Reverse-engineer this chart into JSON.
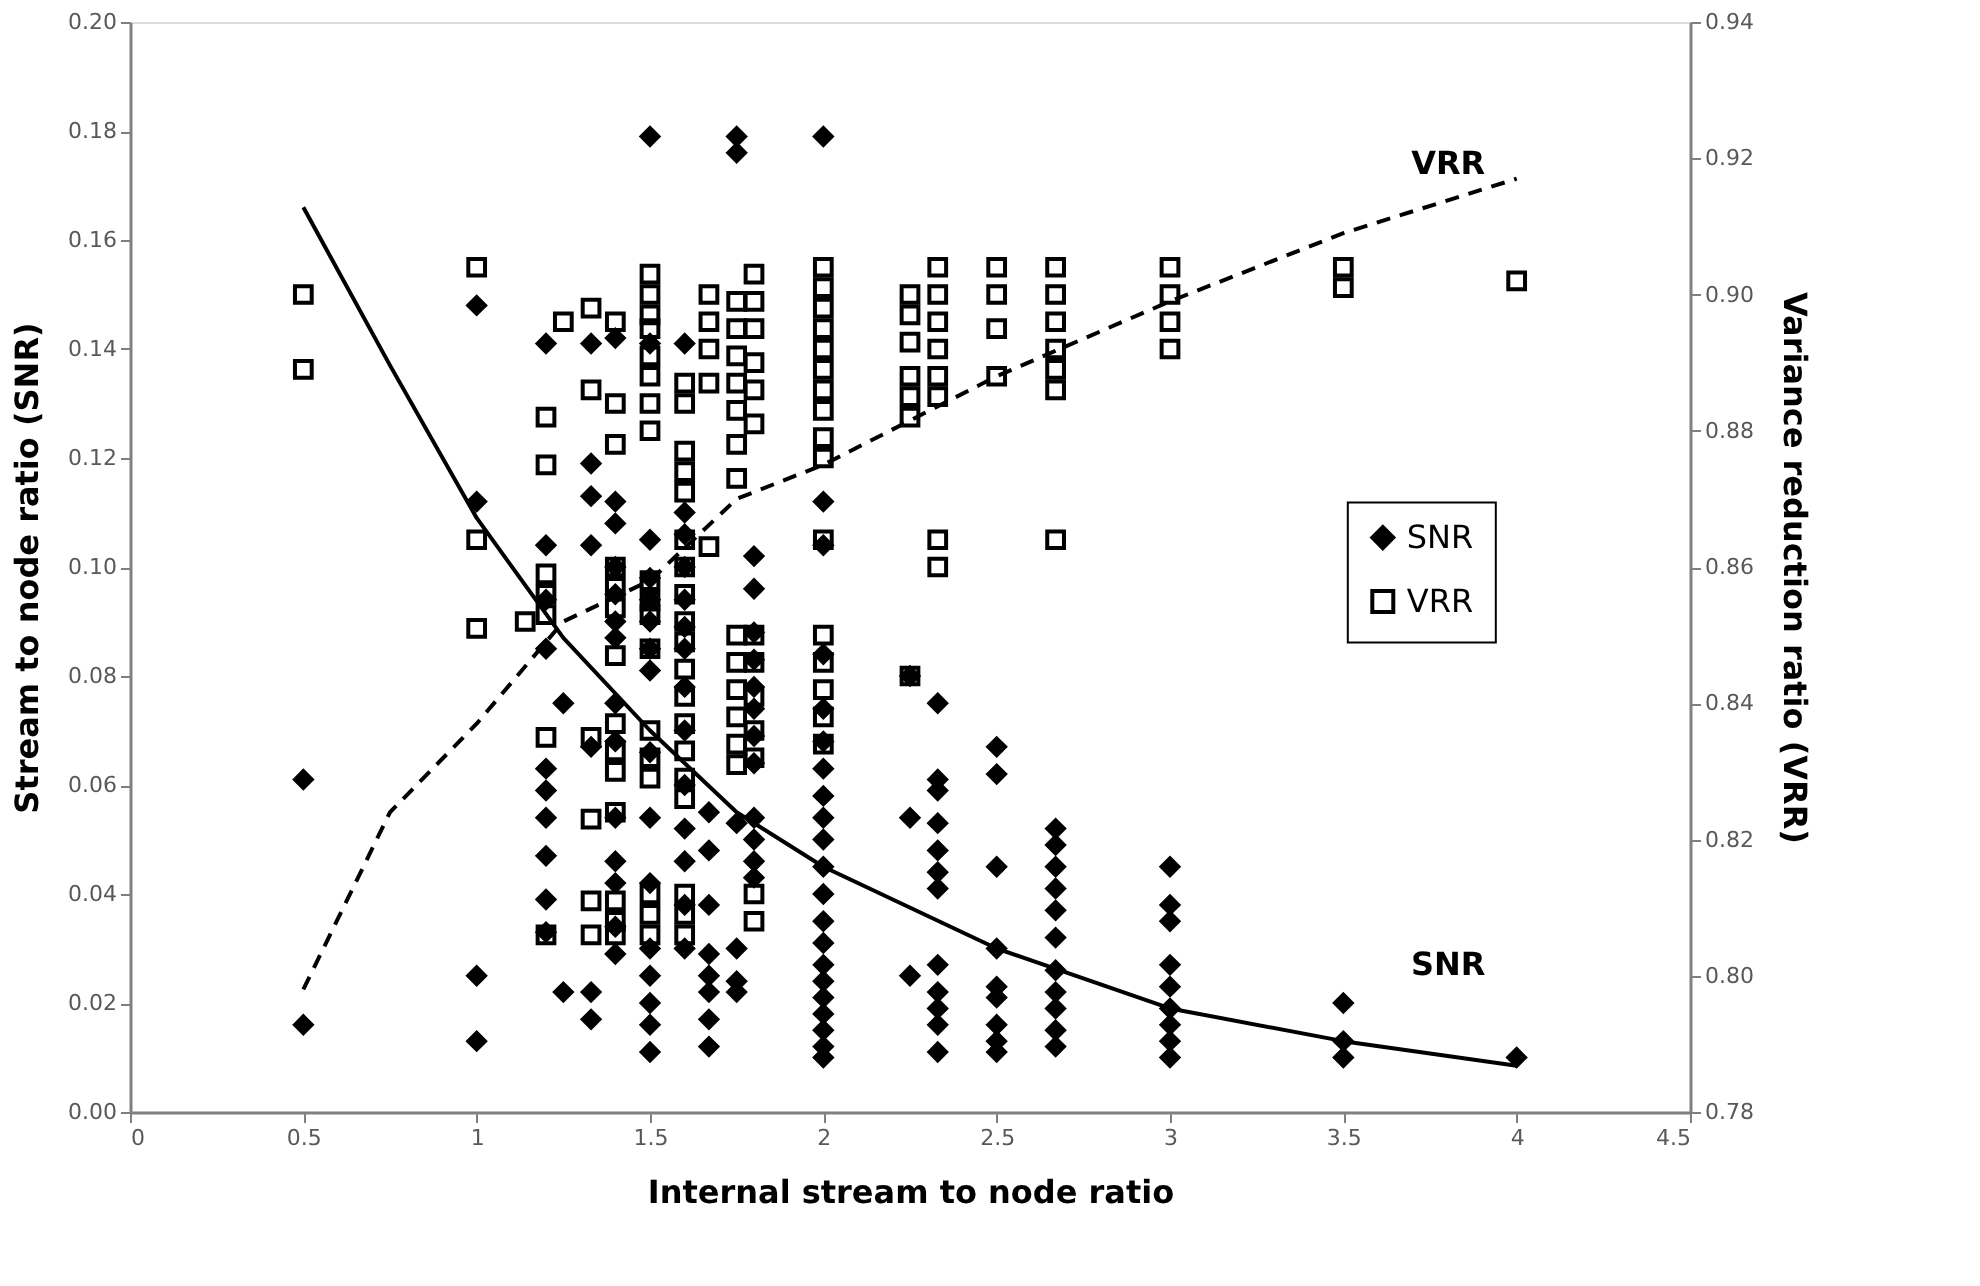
{
  "chart_data": {
    "type": "scatter",
    "xlabel": "Internal stream to node ratio",
    "ylabel": "Stream to node ratio (SNR)",
    "y2label": "Variance reduction ratio (VRR)",
    "xlim": [
      0,
      4.5
    ],
    "xticks": [
      0,
      0.5,
      1,
      1.5,
      2,
      2.5,
      3,
      3.5,
      4,
      4.5
    ],
    "ylim": [
      0,
      0.2
    ],
    "yticks": [
      {
        "value": 0,
        "label": "0.00"
      },
      {
        "value": 0.02,
        "label": "0.02"
      },
      {
        "value": 0.04,
        "label": "0.04"
      },
      {
        "value": 0.06,
        "label": "0.06"
      },
      {
        "value": 0.08,
        "label": "0.08"
      },
      {
        "value": 0.1,
        "label": "0.10"
      },
      {
        "value": 0.12,
        "label": "0.12"
      },
      {
        "value": 0.14,
        "label": "0.14"
      },
      {
        "value": 0.16,
        "label": "0.16"
      },
      {
        "value": 0.18,
        "label": "0.18"
      },
      {
        "value": 0.2,
        "label": "0.20"
      }
    ],
    "y2lim": [
      0.78,
      0.94
    ],
    "y2ticks": [
      0.78,
      {
        "value": 0.8,
        "label": "0.80"
      },
      0.82,
      0.84,
      0.86,
      0.88,
      {
        "value": 0.9,
        "label": "0.90"
      },
      0.92,
      0.94
    ],
    "grid": false,
    "legend": "right",
    "annotations": [
      "VRR",
      "SNR"
    ],
    "series": [
      {
        "name": "SNR",
        "marker": "diamond",
        "color": "#000000",
        "x": [
          0.5,
          0.5,
          1,
          1,
          1,
          1,
          1.2,
          1.2,
          1.2,
          1.2,
          1.2,
          1.2,
          1.2,
          1.2,
          1.2,
          1.2,
          1.25,
          1.25,
          1.33,
          1.33,
          1.33,
          1.33,
          1.33,
          1.33,
          1.33,
          1.4,
          1.4,
          1.4,
          1.4,
          1.4,
          1.4,
          1.4,
          1.4,
          1.4,
          1.4,
          1.4,
          1.4,
          1.4,
          1.4,
          1.5,
          1.5,
          1.5,
          1.5,
          1.5,
          1.5,
          1.5,
          1.5,
          1.5,
          1.5,
          1.5,
          1.5,
          1.5,
          1.5,
          1.5,
          1.5,
          1.6,
          1.6,
          1.6,
          1.6,
          1.6,
          1.6,
          1.6,
          1.6,
          1.6,
          1.6,
          1.6,
          1.6,
          1.6,
          1.6,
          1.67,
          1.67,
          1.67,
          1.67,
          1.67,
          1.67,
          1.67,
          1.67,
          1.75,
          1.75,
          1.75,
          1.75,
          1.75,
          1.75,
          1.8,
          1.8,
          1.8,
          1.8,
          1.8,
          1.8,
          1.8,
          1.8,
          1.8,
          1.8,
          1.8,
          1.8,
          2,
          2,
          2,
          2,
          2,
          2,
          2,
          2,
          2,
          2,
          2,
          2,
          2,
          2,
          2,
          2,
          2,
          2,
          2,
          2,
          2,
          2.25,
          2.25,
          2.25,
          2.33,
          2.33,
          2.33,
          2.33,
          2.33,
          2.33,
          2.33,
          2.33,
          2.33,
          2.33,
          2.33,
          2.33,
          2.5,
          2.5,
          2.5,
          2.5,
          2.5,
          2.5,
          2.5,
          2.5,
          2.5,
          2.67,
          2.67,
          2.67,
          2.67,
          2.67,
          2.67,
          2.67,
          2.67,
          2.67,
          2.67,
          2.67,
          3,
          3,
          3,
          3,
          3,
          3,
          3,
          3,
          3,
          3.5,
          3.5,
          3.5,
          4
        ],
        "values": [
          0.061,
          0.016,
          0.148,
          0.112,
          0.025,
          0.013,
          0.141,
          0.104,
          0.094,
          0.085,
          0.063,
          0.059,
          0.054,
          0.047,
          0.039,
          0.033,
          0.075,
          0.022,
          0.141,
          0.119,
          0.113,
          0.104,
          0.067,
          0.022,
          0.017,
          0.142,
          0.112,
          0.108,
          0.1,
          0.095,
          0.09,
          0.087,
          0.075,
          0.068,
          0.054,
          0.046,
          0.042,
          0.034,
          0.029,
          0.179,
          0.141,
          0.105,
          0.098,
          0.094,
          0.09,
          0.085,
          0.081,
          0.066,
          0.054,
          0.042,
          0.03,
          0.025,
          0.02,
          0.016,
          0.011,
          0.141,
          0.11,
          0.106,
          0.1,
          0.094,
          0.089,
          0.085,
          0.078,
          0.07,
          0.06,
          0.052,
          0.046,
          0.038,
          0.03,
          0.055,
          0.048,
          0.038,
          0.029,
          0.025,
          0.022,
          0.017,
          0.012,
          0.179,
          0.176,
          0.053,
          0.03,
          0.024,
          0.022,
          0.102,
          0.096,
          0.088,
          0.083,
          0.078,
          0.074,
          0.069,
          0.064,
          0.054,
          0.05,
          0.046,
          0.043,
          0.179,
          0.112,
          0.104,
          0.084,
          0.074,
          0.068,
          0.063,
          0.058,
          0.054,
          0.05,
          0.045,
          0.04,
          0.035,
          0.031,
          0.027,
          0.024,
          0.021,
          0.018,
          0.015,
          0.012,
          0.01,
          0.08,
          0.054,
          0.025,
          0.075,
          0.061,
          0.059,
          0.053,
          0.048,
          0.044,
          0.041,
          0.027,
          0.022,
          0.019,
          0.016,
          0.011,
          0.067,
          0.062,
          0.045,
          0.03,
          0.023,
          0.021,
          0.016,
          0.013,
          0.011,
          0.052,
          0.049,
          0.045,
          0.041,
          0.037,
          0.032,
          0.026,
          0.022,
          0.019,
          0.015,
          0.012,
          0.045,
          0.038,
          0.035,
          0.027,
          0.023,
          0.019,
          0.016,
          0.013,
          0.01,
          0.02,
          0.013,
          0.01,
          0.01
        ]
      },
      {
        "name": "VRR",
        "marker": "square",
        "color": "#000000",
        "axis": "y2",
        "x": [
          0.5,
          0.5,
          1,
          1,
          1,
          1.14,
          1.2,
          1.2,
          1.2,
          1.2,
          1.2,
          1.2,
          1.2,
          1.25,
          1.33,
          1.33,
          1.33,
          1.33,
          1.33,
          1.33,
          1.4,
          1.4,
          1.4,
          1.4,
          1.4,
          1.4,
          1.4,
          1.4,
          1.4,
          1.4,
          1.4,
          1.4,
          1.4,
          1.4,
          1.5,
          1.5,
          1.5,
          1.5,
          1.5,
          1.5,
          1.5,
          1.5,
          1.5,
          1.5,
          1.5,
          1.5,
          1.5,
          1.5,
          1.5,
          1.5,
          1.5,
          1.5,
          1.6,
          1.6,
          1.6,
          1.6,
          1.6,
          1.6,
          1.6,
          1.6,
          1.6,
          1.6,
          1.6,
          1.6,
          1.6,
          1.6,
          1.6,
          1.6,
          1.6,
          1.6,
          1.6,
          1.67,
          1.67,
          1.67,
          1.67,
          1.67,
          1.75,
          1.75,
          1.75,
          1.75,
          1.75,
          1.75,
          1.75,
          1.75,
          1.75,
          1.75,
          1.75,
          1.75,
          1.75,
          1.8,
          1.8,
          1.8,
          1.8,
          1.8,
          1.8,
          1.8,
          1.8,
          1.8,
          1.8,
          1.8,
          1.8,
          1.8,
          2,
          2,
          2,
          2,
          2,
          2,
          2,
          2,
          2,
          2,
          2,
          2,
          2,
          2,
          2,
          2,
          2.25,
          2.25,
          2.25,
          2.25,
          2.25,
          2.25,
          2.25,
          2.33,
          2.33,
          2.33,
          2.33,
          2.33,
          2.33,
          2.33,
          2.33,
          2.5,
          2.5,
          2.5,
          2.5,
          2.67,
          2.67,
          2.67,
          2.67,
          2.67,
          2.67,
          2.67,
          3,
          3,
          3,
          3,
          3.5,
          3.5,
          4
        ],
        "values": [
          0.9,
          0.889,
          0.904,
          0.864,
          0.851,
          0.852,
          0.882,
          0.875,
          0.859,
          0.856,
          0.853,
          0.835,
          0.806,
          0.896,
          0.898,
          0.886,
          0.835,
          0.823,
          0.811,
          0.806,
          0.896,
          0.884,
          0.878,
          0.86,
          0.857,
          0.854,
          0.847,
          0.837,
          0.833,
          0.83,
          0.824,
          0.811,
          0.808,
          0.806,
          0.903,
          0.9,
          0.897,
          0.895,
          0.891,
          0.888,
          0.884,
          0.88,
          0.858,
          0.855,
          0.853,
          0.848,
          0.836,
          0.832,
          0.829,
          0.812,
          0.809,
          0.806,
          0.887,
          0.884,
          0.877,
          0.874,
          0.871,
          0.864,
          0.86,
          0.856,
          0.852,
          0.849,
          0.845,
          0.841,
          0.837,
          0.833,
          0.829,
          0.826,
          0.812,
          0.809,
          0.806,
          0.9,
          0.896,
          0.892,
          0.887,
          0.863,
          0.899,
          0.895,
          0.891,
          0.887,
          0.883,
          0.878,
          0.873,
          0.85,
          0.846,
          0.842,
          0.838,
          0.834,
          0.831,
          0.903,
          0.899,
          0.895,
          0.89,
          0.886,
          0.881,
          0.85,
          0.846,
          0.841,
          0.836,
          0.832,
          0.812,
          0.808,
          0.904,
          0.901,
          0.898,
          0.895,
          0.892,
          0.889,
          0.886,
          0.883,
          0.879,
          0.876,
          0.864,
          0.85,
          0.846,
          0.842,
          0.838,
          0.834,
          0.9,
          0.897,
          0.893,
          0.888,
          0.885,
          0.882,
          0.844,
          0.904,
          0.9,
          0.896,
          0.892,
          0.888,
          0.885,
          0.864,
          0.86,
          0.904,
          0.9,
          0.895,
          0.888,
          0.904,
          0.9,
          0.896,
          0.892,
          0.889,
          0.886,
          0.864,
          0.904,
          0.9,
          0.896,
          0.892,
          0.904,
          0.901,
          0.902
        ]
      },
      {
        "type": "line",
        "line_style": "solid",
        "color": "#000000",
        "x": [
          0.5,
          0.75,
          1,
          1.25,
          1.5,
          1.75,
          2,
          2.5,
          3,
          3.5,
          4
        ],
        "values": [
          0.166,
          0.137,
          0.109,
          0.087,
          0.07,
          0.055,
          0.045,
          0.03,
          0.019,
          0.013,
          0.0085
        ]
      },
      {
        "type": "line",
        "line_style": "dashed",
        "color": "#000000",
        "axis": "y2",
        "x": [
          0.5,
          0.75,
          1,
          1.25,
          1.5,
          1.75,
          2,
          2.5,
          3,
          3.5,
          4
        ],
        "values": [
          0.798,
          0.824,
          0.837,
          0.852,
          0.858,
          0.87,
          0.875,
          0.888,
          0.899,
          0.909,
          0.917
        ]
      }
    ]
  }
}
